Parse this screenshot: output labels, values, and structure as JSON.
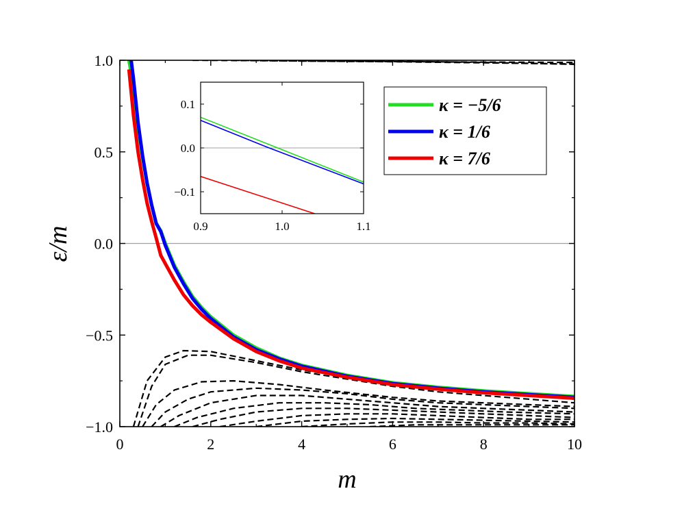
{
  "chart_data": {
    "type": "line",
    "xlabel": "m",
    "ylabel": "ε/m",
    "xlim": [
      0,
      10
    ],
    "ylim": [
      -1.0,
      1.0
    ],
    "xticks": [
      0,
      2,
      4,
      6,
      8,
      10
    ],
    "yticks": [
      -1.0,
      -0.5,
      0.0,
      0.5,
      1.0
    ],
    "xtick_labels": [
      "0",
      "2",
      "4",
      "6",
      "8",
      "10"
    ],
    "ytick_labels": [
      "−1.0",
      "−0.5",
      "0.0",
      "0.5",
      "1.0"
    ],
    "reference_line_y": 0.0,
    "legend_position": "top-right",
    "series": [
      {
        "name": "κ = −5/6",
        "color": "#22dd22",
        "x": [
          0.2,
          0.3,
          0.4,
          0.5,
          0.6,
          0.7,
          0.8,
          0.9,
          1.0,
          1.2,
          1.4,
          1.6,
          1.8,
          2.0,
          2.5,
          3.0,
          3.5,
          4.0,
          5.0,
          6.0,
          7.0,
          8.0,
          9.0,
          10.0
        ],
        "y": [
          1.0,
          0.86,
          0.64,
          0.47,
          0.33,
          0.21,
          0.11,
          0.07,
          0.0,
          -0.12,
          -0.21,
          -0.29,
          -0.35,
          -0.4,
          -0.5,
          -0.57,
          -0.625,
          -0.665,
          -0.72,
          -0.76,
          -0.785,
          -0.805,
          -0.82,
          -0.835
        ]
      },
      {
        "name": "κ = 1/6",
        "color": "#0000ee",
        "x": [
          0.25,
          0.3,
          0.4,
          0.5,
          0.6,
          0.7,
          0.8,
          0.9,
          1.0,
          1.2,
          1.4,
          1.6,
          1.8,
          2.0,
          2.5,
          3.0,
          3.5,
          4.0,
          5.0,
          6.0,
          7.0,
          8.0,
          9.0,
          10.0
        ],
        "y": [
          1.0,
          0.9,
          0.66,
          0.48,
          0.33,
          0.21,
          0.11,
          0.065,
          -0.01,
          -0.13,
          -0.22,
          -0.3,
          -0.36,
          -0.41,
          -0.51,
          -0.58,
          -0.63,
          -0.67,
          -0.725,
          -0.765,
          -0.79,
          -0.81,
          -0.825,
          -0.84
        ]
      },
      {
        "name": "κ = 7/6",
        "color": "#ee0000",
        "x": [
          0.2,
          0.3,
          0.4,
          0.5,
          0.6,
          0.7,
          0.8,
          0.9,
          1.0,
          1.2,
          1.4,
          1.6,
          1.8,
          2.0,
          2.5,
          3.0,
          3.5,
          4.0,
          5.0,
          6.0,
          7.0,
          8.0,
          9.0,
          10.0
        ],
        "y": [
          0.95,
          0.7,
          0.5,
          0.35,
          0.22,
          0.12,
          0.03,
          -0.065,
          -0.11,
          -0.2,
          -0.28,
          -0.34,
          -0.39,
          -0.43,
          -0.52,
          -0.59,
          -0.64,
          -0.68,
          -0.73,
          -0.77,
          -0.795,
          -0.815,
          -0.83,
          -0.845
        ]
      }
    ],
    "dashed_curves": [
      {
        "x": [
          0.3,
          0.6,
          1.0,
          1.4,
          2.0,
          3.0,
          4.0,
          5.0,
          6.0,
          7.0,
          8.0,
          9.0,
          10.0
        ],
        "y": [
          -1.0,
          -0.75,
          -0.62,
          -0.585,
          -0.59,
          -0.64,
          -0.69,
          -0.73,
          -0.76,
          -0.79,
          -0.81,
          -0.83,
          -0.85
        ]
      },
      {
        "x": [
          0.4,
          0.7,
          1.0,
          1.5,
          2.0,
          3.0,
          4.0,
          5.0,
          6.0,
          7.0,
          8.0,
          9.0,
          10.0
        ],
        "y": [
          -1.0,
          -0.78,
          -0.66,
          -0.61,
          -0.61,
          -0.65,
          -0.7,
          -0.74,
          -0.78,
          -0.81,
          -0.83,
          -0.85,
          -0.87
        ]
      },
      {
        "x": [
          0.5,
          0.8,
          1.2,
          1.8,
          2.5,
          3.5,
          4.5,
          6.0,
          7.0,
          8.0,
          9.0,
          10.0
        ],
        "y": [
          -1.0,
          -0.88,
          -0.8,
          -0.755,
          -0.75,
          -0.77,
          -0.8,
          -0.84,
          -0.86,
          -0.87,
          -0.88,
          -0.89
        ]
      },
      {
        "x": [
          0.7,
          1.0,
          1.5,
          2.0,
          3.0,
          4.0,
          5.0,
          6.0,
          7.0,
          8.0,
          9.0,
          10.0
        ],
        "y": [
          -1.0,
          -0.92,
          -0.85,
          -0.81,
          -0.79,
          -0.8,
          -0.82,
          -0.85,
          -0.87,
          -0.88,
          -0.89,
          -0.9
        ]
      },
      {
        "x": [
          0.9,
          1.3,
          2.0,
          3.0,
          4.0,
          5.0,
          6.0,
          7.0,
          8.0,
          9.0,
          10.0
        ],
        "y": [
          -1.0,
          -0.94,
          -0.87,
          -0.83,
          -0.83,
          -0.85,
          -0.87,
          -0.89,
          -0.9,
          -0.91,
          -0.92
        ]
      },
      {
        "x": [
          1.2,
          1.7,
          2.5,
          3.5,
          4.5,
          5.5,
          6.5,
          7.5,
          8.5,
          10.0
        ],
        "y": [
          -1.0,
          -0.95,
          -0.9,
          -0.87,
          -0.87,
          -0.88,
          -0.9,
          -0.91,
          -0.92,
          -0.93
        ]
      },
      {
        "x": [
          1.6,
          2.2,
          3.0,
          4.0,
          5.0,
          6.0,
          7.0,
          8.0,
          9.0,
          10.0
        ],
        "y": [
          -1.0,
          -0.96,
          -0.92,
          -0.9,
          -0.9,
          -0.91,
          -0.92,
          -0.93,
          -0.94,
          -0.95
        ]
      },
      {
        "x": [
          2.2,
          3.0,
          4.0,
          5.0,
          6.0,
          7.0,
          8.0,
          9.0,
          10.0
        ],
        "y": [
          -1.0,
          -0.97,
          -0.94,
          -0.93,
          -0.93,
          -0.94,
          -0.95,
          -0.96,
          -0.96
        ]
      },
      {
        "x": [
          3.0,
          4.0,
          5.0,
          6.0,
          7.0,
          8.0,
          9.0,
          10.0
        ],
        "y": [
          -1.0,
          -0.97,
          -0.96,
          -0.955,
          -0.96,
          -0.965,
          -0.97,
          -0.975
        ]
      },
      {
        "x": [
          4.0,
          5.0,
          6.0,
          7.0,
          8.0,
          9.0,
          10.0
        ],
        "y": [
          -1.0,
          -0.985,
          -0.975,
          -0.975,
          -0.98,
          -0.98,
          -0.985
        ]
      },
      {
        "x": [
          5.5,
          6.5,
          7.5,
          8.5,
          10.0
        ],
        "y": [
          -1.0,
          -0.99,
          -0.99,
          -0.99,
          -0.99
        ]
      },
      {
        "x": [
          1.6,
          3.0,
          4.5,
          6.0,
          8.0,
          10.0
        ],
        "y": [
          1.0,
          0.998,
          0.995,
          0.993,
          0.99,
          0.988
        ]
      },
      {
        "x": [
          2.5,
          4.0,
          6.0,
          8.0,
          10.0
        ],
        "y": [
          1.0,
          0.996,
          0.992,
          0.986,
          0.98
        ]
      },
      {
        "x": [
          4.0,
          6.0,
          8.0,
          10.0
        ],
        "y": [
          1.0,
          0.995,
          0.988,
          0.978
        ]
      }
    ],
    "inset": {
      "xlim": [
        0.9,
        1.1
      ],
      "ylim": [
        -0.15,
        0.15
      ],
      "xticks": [
        0.9,
        1.0,
        1.1
      ],
      "yticks": [
        -0.1,
        0.0,
        0.1
      ],
      "xtick_labels": [
        "0.9",
        "1.0",
        "1.1"
      ],
      "ytick_labels": [
        "−0.1",
        "0.0",
        "0.1"
      ],
      "series": [
        {
          "color": "#22dd22",
          "x": [
            0.9,
            1.1
          ],
          "y": [
            0.07,
            -0.078
          ]
        },
        {
          "color": "#0000ee",
          "x": [
            0.9,
            0.98,
            1.1
          ],
          "y": [
            0.063,
            0.003,
            -0.082
          ]
        },
        {
          "color": "#ee0000",
          "x": [
            0.9,
            1.04
          ],
          "y": [
            -0.065,
            -0.15
          ]
        }
      ]
    }
  }
}
